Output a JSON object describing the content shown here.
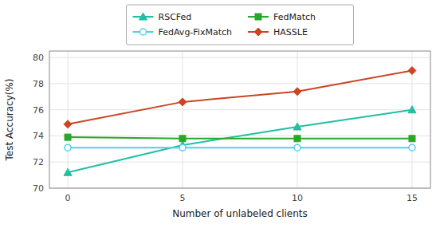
{
  "chart_data": {
    "type": "line",
    "x": [
      0,
      5,
      10,
      15
    ],
    "series": [
      {
        "name": "RSCFed",
        "color": "#20c0a0",
        "marker": "triangle",
        "values": [
          71.2,
          73.3,
          74.7,
          76.0
        ]
      },
      {
        "name": "FedMatch",
        "color": "#28a828",
        "marker": "square",
        "values": [
          73.9,
          73.8,
          73.8,
          73.8
        ]
      },
      {
        "name": "FedAvg-FixMatch",
        "color": "#55ccee",
        "marker": "circle",
        "values": [
          73.1,
          73.1,
          73.1,
          73.1
        ]
      },
      {
        "name": "HASSLE",
        "color": "#cc4422",
        "marker": "diamond",
        "values": [
          74.9,
          76.6,
          77.4,
          79.0
        ]
      }
    ],
    "xlabel": "Number of unlabeled clients",
    "ylabel": "Test Accuracy(%)",
    "xlim": [
      -0.8,
      15.8
    ],
    "ylim": [
      70,
      80.5
    ],
    "xticks": [
      0,
      5,
      10,
      15
    ],
    "yticks": [
      70,
      72,
      74,
      76,
      78,
      80
    ],
    "grid": true,
    "legend": "top"
  }
}
